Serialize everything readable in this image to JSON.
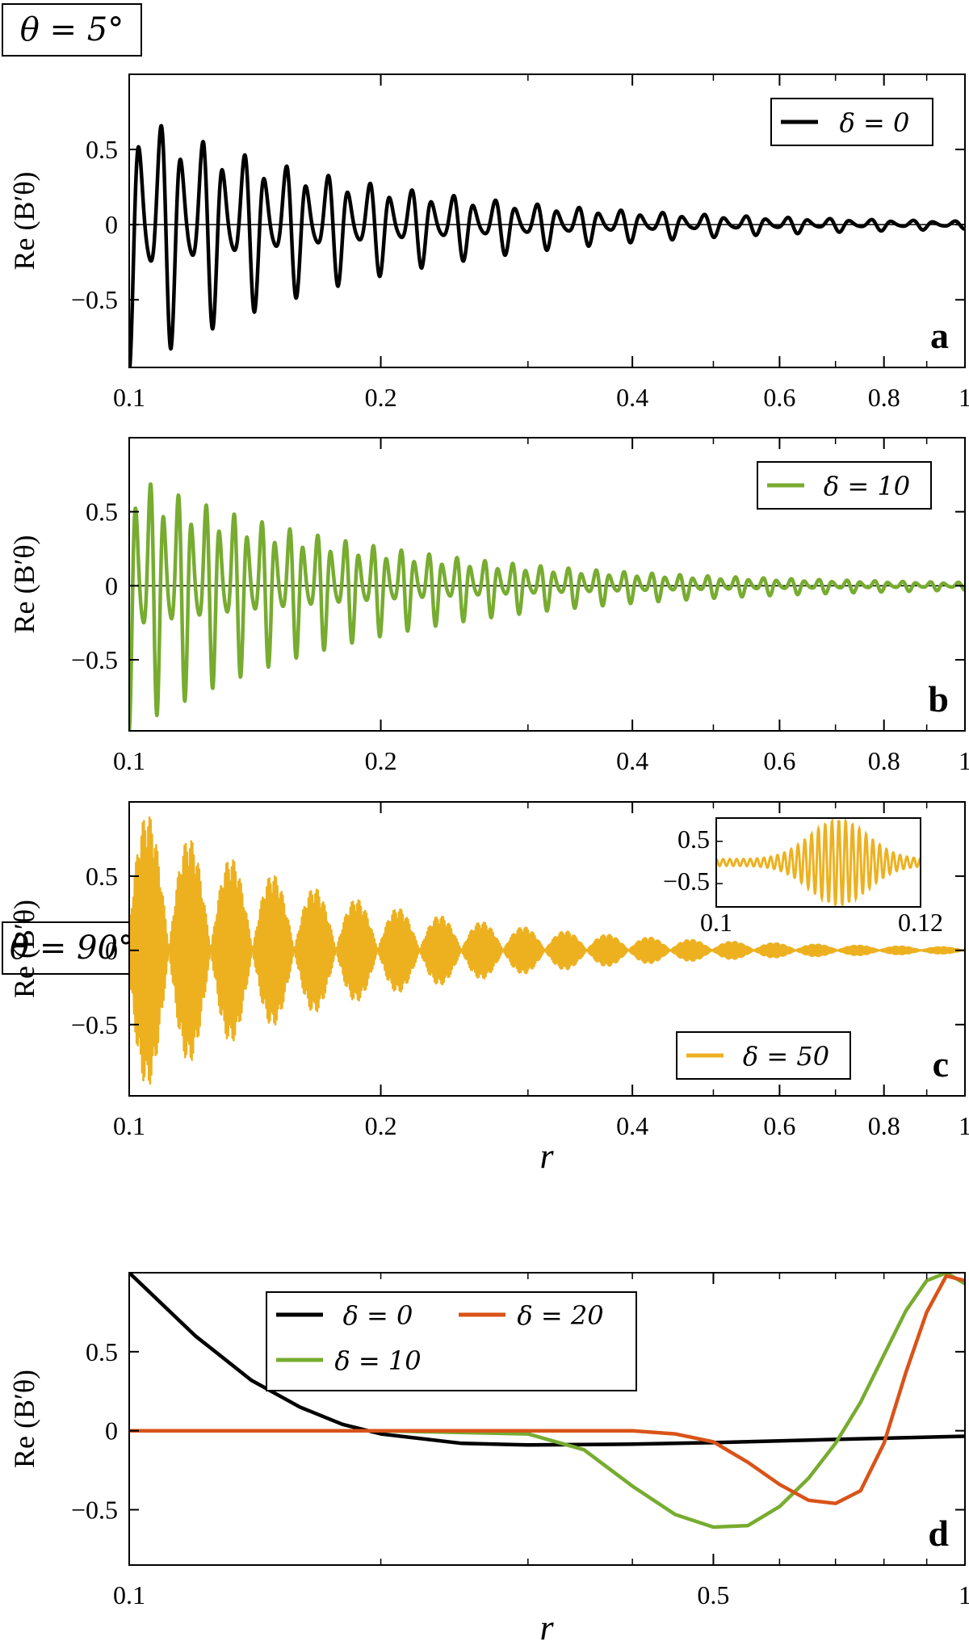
{
  "header_top": "θ = 5°",
  "header_bottom": "θ = 90°",
  "ylabel": "Re (B′θ)",
  "xlabel": "r",
  "chart_data": [
    {
      "id": "a",
      "type": "line",
      "panel_label": "a",
      "xscale": "log",
      "xlim": [
        0.1,
        1
      ],
      "ylim": [
        -0.95,
        1.0
      ],
      "yticks": [
        "0.5",
        "0",
        "−0.5"
      ],
      "ytick_values": [
        0.5,
        0,
        -0.5
      ],
      "xticks": [
        "0.1",
        "0.2",
        "0.4",
        "0.6",
        "0.8",
        "1"
      ],
      "xtick_values": [
        0.1,
        0.2,
        0.4,
        0.6,
        0.8,
        1
      ],
      "legend_position": "top-right",
      "series": [
        {
          "name": "δ = 0",
          "color": "#000000",
          "oscillation_cycles": 40,
          "amplitude_start": 1.0,
          "amplitude_end": 0.03
        }
      ]
    },
    {
      "id": "b",
      "type": "line",
      "panel_label": "b",
      "xscale": "log",
      "xlim": [
        0.1,
        1
      ],
      "ylim": [
        -0.98,
        1.0
      ],
      "yticks": [
        "0.5",
        "0",
        "−0.5"
      ],
      "ytick_values": [
        0.5,
        0,
        -0.5
      ],
      "xticks": [
        "0.1",
        "0.2",
        "0.4",
        "0.6",
        "0.8",
        "1"
      ],
      "xtick_values": [
        0.1,
        0.2,
        0.4,
        0.6,
        0.8,
        1
      ],
      "legend_position": "top-right",
      "series": [
        {
          "name": "δ = 10",
          "color": "#77AC30",
          "oscillation_cycles": 60,
          "amplitude_start": 1.0,
          "amplitude_end": 0.03
        }
      ]
    },
    {
      "id": "c",
      "type": "line",
      "panel_label": "c",
      "xscale": "log",
      "xlim": [
        0.1,
        1
      ],
      "ylim": [
        -0.98,
        1.0
      ],
      "yticks": [
        "0.5",
        "0",
        "−0.5"
      ],
      "ytick_values": [
        0.5,
        0,
        -0.5
      ],
      "xticks": [
        "0.1",
        "0.2",
        "0.4",
        "0.6",
        "0.8",
        "1"
      ],
      "xtick_values": [
        0.1,
        0.2,
        0.4,
        0.6,
        0.8,
        1
      ],
      "legend_position": "bottom-right",
      "series": [
        {
          "name": "δ = 50",
          "color": "#EDB120",
          "envelope_cycles": 20,
          "amplitude_start": 1.0,
          "amplitude_end": 0.02
        }
      ],
      "inset": {
        "xlim": [
          0.1,
          0.12
        ],
        "xticks": [
          "0.1",
          "0.12"
        ],
        "yticks": [
          "0.5",
          "−0.5"
        ],
        "ytick_values": [
          0.5,
          -0.5
        ]
      }
    },
    {
      "id": "d",
      "type": "line",
      "panel_label": "d",
      "xscale": "log",
      "xlim": [
        0.1,
        1
      ],
      "ylim": [
        -0.85,
        1.0
      ],
      "yticks": [
        "0.5",
        "0",
        "−0.5"
      ],
      "ytick_values": [
        0.5,
        0,
        -0.5
      ],
      "xticks": [
        "0.1",
        "0.5",
        "1"
      ],
      "xtick_values": [
        0.1,
        0.5,
        1
      ],
      "legend_position": "top-center",
      "series": [
        {
          "name": "δ = 0",
          "color": "#000000",
          "r": [
            0.1,
            0.12,
            0.14,
            0.16,
            0.18,
            0.2,
            0.25,
            0.3,
            0.4,
            0.5,
            0.7,
            1.0
          ],
          "y": [
            1.0,
            0.6,
            0.32,
            0.15,
            0.04,
            -0.02,
            -0.08,
            -0.09,
            -0.085,
            -0.075,
            -0.055,
            -0.035
          ]
        },
        {
          "name": "δ = 10",
          "color": "#77AC30",
          "r": [
            0.1,
            0.2,
            0.3,
            0.35,
            0.4,
            0.45,
            0.5,
            0.55,
            0.6,
            0.65,
            0.7,
            0.75,
            0.8,
            0.85,
            0.9,
            0.95,
            1.0
          ],
          "y": [
            0.0,
            0.0,
            -0.02,
            -0.12,
            -0.35,
            -0.53,
            -0.61,
            -0.6,
            -0.48,
            -0.3,
            -0.08,
            0.18,
            0.48,
            0.76,
            0.95,
            1.0,
            0.93
          ]
        },
        {
          "name": "δ = 20",
          "color": "#D95319",
          "r": [
            0.1,
            0.2,
            0.3,
            0.4,
            0.45,
            0.5,
            0.55,
            0.6,
            0.65,
            0.7,
            0.75,
            0.8,
            0.85,
            0.9,
            0.95,
            1.0
          ],
          "y": [
            0.0,
            0.0,
            0.0,
            0.0,
            -0.02,
            -0.07,
            -0.2,
            -0.34,
            -0.44,
            -0.46,
            -0.38,
            -0.08,
            0.37,
            0.75,
            0.98,
            0.95
          ]
        }
      ]
    }
  ]
}
